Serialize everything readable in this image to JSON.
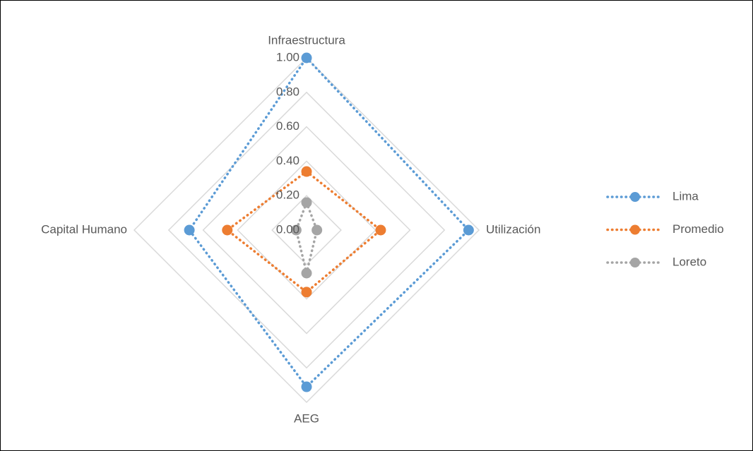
{
  "chart_data": {
    "type": "radar",
    "categories": [
      "Infraestructura",
      "Utilización",
      "AEG",
      "Capital Humano"
    ],
    "series": [
      {
        "name": "Lima",
        "color": "#5b9bd5",
        "values": [
          1.0,
          0.94,
          0.91,
          0.68
        ]
      },
      {
        "name": "Promedio",
        "color": "#ed7d31",
        "values": [
          0.34,
          0.43,
          0.36,
          0.46
        ]
      },
      {
        "name": "Loreto",
        "color": "#a5a5a5",
        "values": [
          0.16,
          0.06,
          0.25,
          0.06
        ]
      }
    ],
    "rlim": [
      0,
      1
    ],
    "rticks": [
      {
        "value": 0,
        "label": "0.00"
      },
      {
        "value": 0.2,
        "label": "0.20"
      },
      {
        "value": 0.4,
        "label": "0.40"
      },
      {
        "value": 0.6,
        "label": "0.60"
      },
      {
        "value": 0.8,
        "label": "0.80"
      },
      {
        "value": 1,
        "label": "1.00"
      }
    ],
    "grid": true,
    "legend": "right"
  }
}
